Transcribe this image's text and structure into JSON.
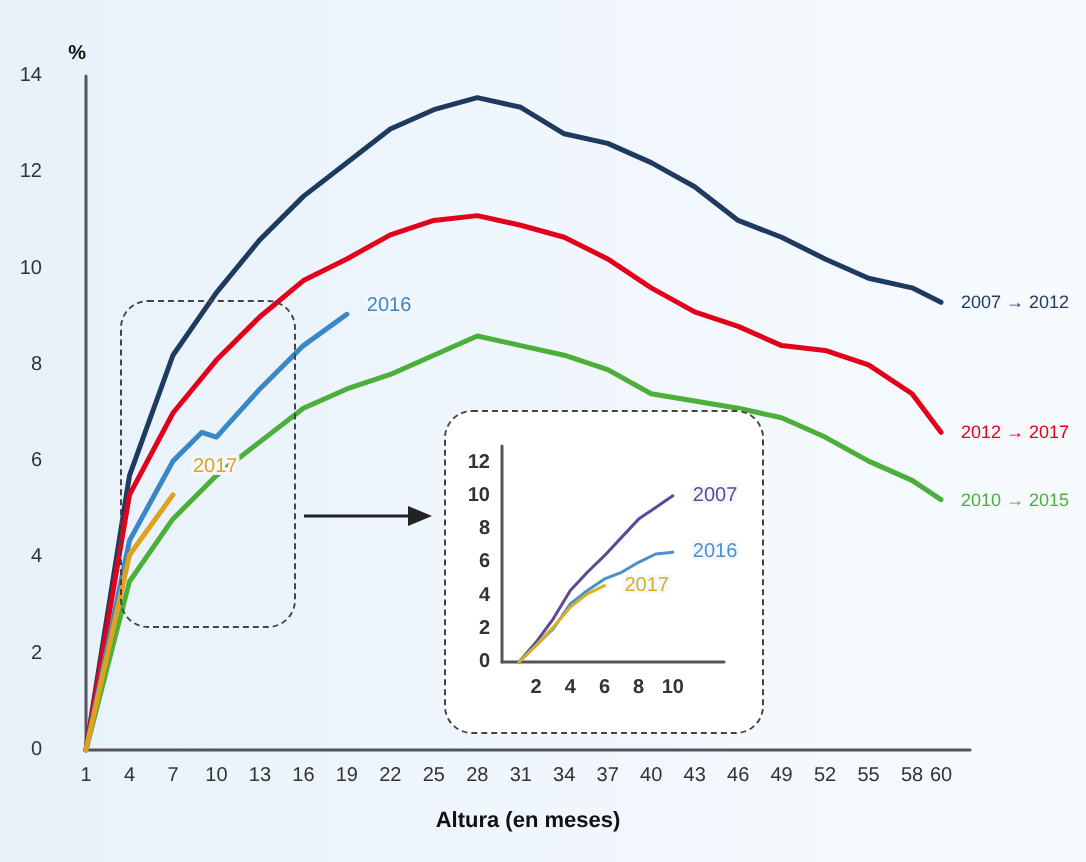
{
  "chart_data": [
    {
      "type": "line",
      "xlabel": "Altura (en meses)",
      "ylabel": "%",
      "xlim": [
        1,
        62
      ],
      "xticks": [
        1,
        4,
        7,
        10,
        13,
        16,
        19,
        22,
        25,
        28,
        31,
        34,
        37,
        40,
        43,
        46,
        49,
        52,
        55,
        58,
        60
      ],
      "ylim": [
        0,
        14
      ],
      "yticks": [
        0,
        2,
        4,
        6,
        8,
        10,
        12,
        14
      ],
      "grid": false,
      "legend": false,
      "marker": "none",
      "line_style": "solid",
      "series": [
        {
          "name": "2007 → 2012",
          "color": "#1f3a5f",
          "x": [
            1,
            4,
            7,
            10,
            13,
            16,
            19,
            22,
            25,
            28,
            31,
            34,
            37,
            40,
            43,
            46,
            49,
            52,
            55,
            58,
            60
          ],
          "values": [
            0,
            5.7,
            8.2,
            9.5,
            10.6,
            11.5,
            12.2,
            12.9,
            13.3,
            13.55,
            13.35,
            12.8,
            12.6,
            12.2,
            11.7,
            11.0,
            10.65,
            10.2,
            9.8,
            9.6,
            9.3
          ]
        },
        {
          "name": "2012 → 2017",
          "color": "#e3001b",
          "x": [
            1,
            4,
            7,
            10,
            13,
            16,
            19,
            22,
            25,
            28,
            31,
            34,
            37,
            40,
            43,
            46,
            49,
            52,
            55,
            58,
            60
          ],
          "values": [
            0,
            5.3,
            7.0,
            8.1,
            9.0,
            9.75,
            10.2,
            10.7,
            11.0,
            11.1,
            10.9,
            10.65,
            10.2,
            9.6,
            9.1,
            8.8,
            8.4,
            8.3,
            8.0,
            7.4,
            6.6
          ]
        },
        {
          "name": "2010 → 2015",
          "color": "#4caf3a",
          "x": [
            1,
            4,
            7,
            10,
            13,
            16,
            19,
            22,
            25,
            28,
            31,
            34,
            37,
            40,
            43,
            46,
            49,
            52,
            55,
            58,
            60
          ],
          "values": [
            0,
            3.5,
            4.8,
            5.7,
            6.4,
            7.1,
            7.5,
            7.8,
            8.2,
            8.6,
            8.4,
            8.2,
            7.9,
            7.4,
            7.25,
            7.1,
            6.9,
            6.5,
            6.0,
            5.6,
            5.2
          ]
        },
        {
          "name": "2016",
          "color": "#3a87c8",
          "x": [
            1,
            4,
            7,
            9,
            10,
            13,
            16,
            19
          ],
          "values": [
            0,
            4.35,
            6.0,
            6.6,
            6.5,
            7.5,
            8.4,
            9.05
          ]
        },
        {
          "name": "2017",
          "color": "#e0a020",
          "x": [
            1,
            4,
            7
          ],
          "values": [
            0,
            4.05,
            5.3
          ]
        }
      ]
    },
    {
      "type": "line",
      "xlim": [
        0,
        13
      ],
      "xticks": [
        2,
        4,
        6,
        8,
        10
      ],
      "ylim": [
        0,
        13
      ],
      "yticks": [
        0,
        2,
        4,
        6,
        8,
        10,
        12
      ],
      "grid": false,
      "legend": false,
      "marker": "none",
      "line_style": "solid",
      "series": [
        {
          "name": "2007",
          "color": "#5b4a9a",
          "x": [
            1,
            2,
            3,
            4,
            5,
            6,
            7,
            8,
            9,
            10
          ],
          "values": [
            0,
            1.2,
            2.6,
            4.3,
            5.4,
            6.4,
            7.5,
            8.6,
            9.3,
            10.0
          ]
        },
        {
          "name": "2016",
          "color": "#4a90d0",
          "x": [
            1,
            2,
            3,
            4,
            5,
            6,
            7,
            8,
            9,
            10
          ],
          "values": [
            0,
            1.0,
            2.0,
            3.5,
            4.3,
            5.0,
            5.4,
            6.0,
            6.5,
            6.6
          ]
        },
        {
          "name": "2017",
          "color": "#d8b020",
          "x": [
            1,
            2,
            3,
            4,
            5,
            6
          ],
          "values": [
            0,
            1.0,
            2.1,
            3.3,
            4.1,
            4.6
          ]
        }
      ]
    }
  ]
}
